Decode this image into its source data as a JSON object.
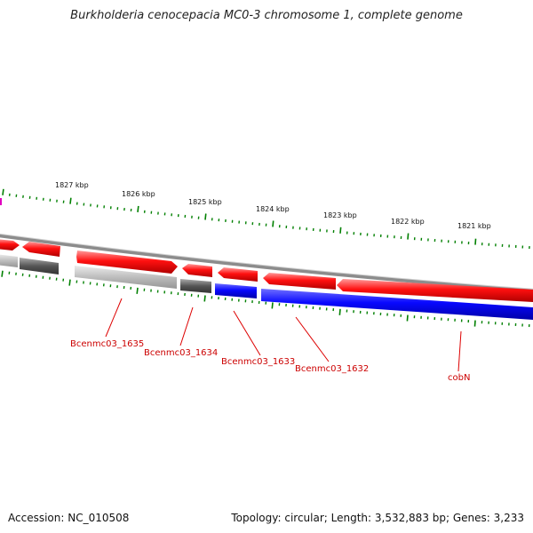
{
  "title": "Burkholderia cenocepacia MC0-3 chromosome 1, complete genome",
  "footer": {
    "accession": "Accession: NC_010508",
    "summary": "Topology: circular; Length: 3,532,883 bp; Genes: 3,233"
  },
  "scale_labels": [
    "1827 kbp",
    "1826 kbp",
    "1825 kbp",
    "1824 kbp",
    "1823 kbp",
    "1822 kbp",
    "1821 kbp"
  ],
  "gene_labels": [
    "Bcenmc03_1635",
    "Bcenmc03_1634",
    "Bcenmc03_1633",
    "Bcenmc03_1632",
    "cobN"
  ],
  "colors": {
    "forward_cds": "#ee0000",
    "reverse_cds": "#0000ee",
    "ruler_tick": "#008000",
    "backbone": "#808080",
    "label": "#cc0000",
    "gene_grey_dark": "#555555",
    "gene_grey_light": "#bbbbbb"
  }
}
